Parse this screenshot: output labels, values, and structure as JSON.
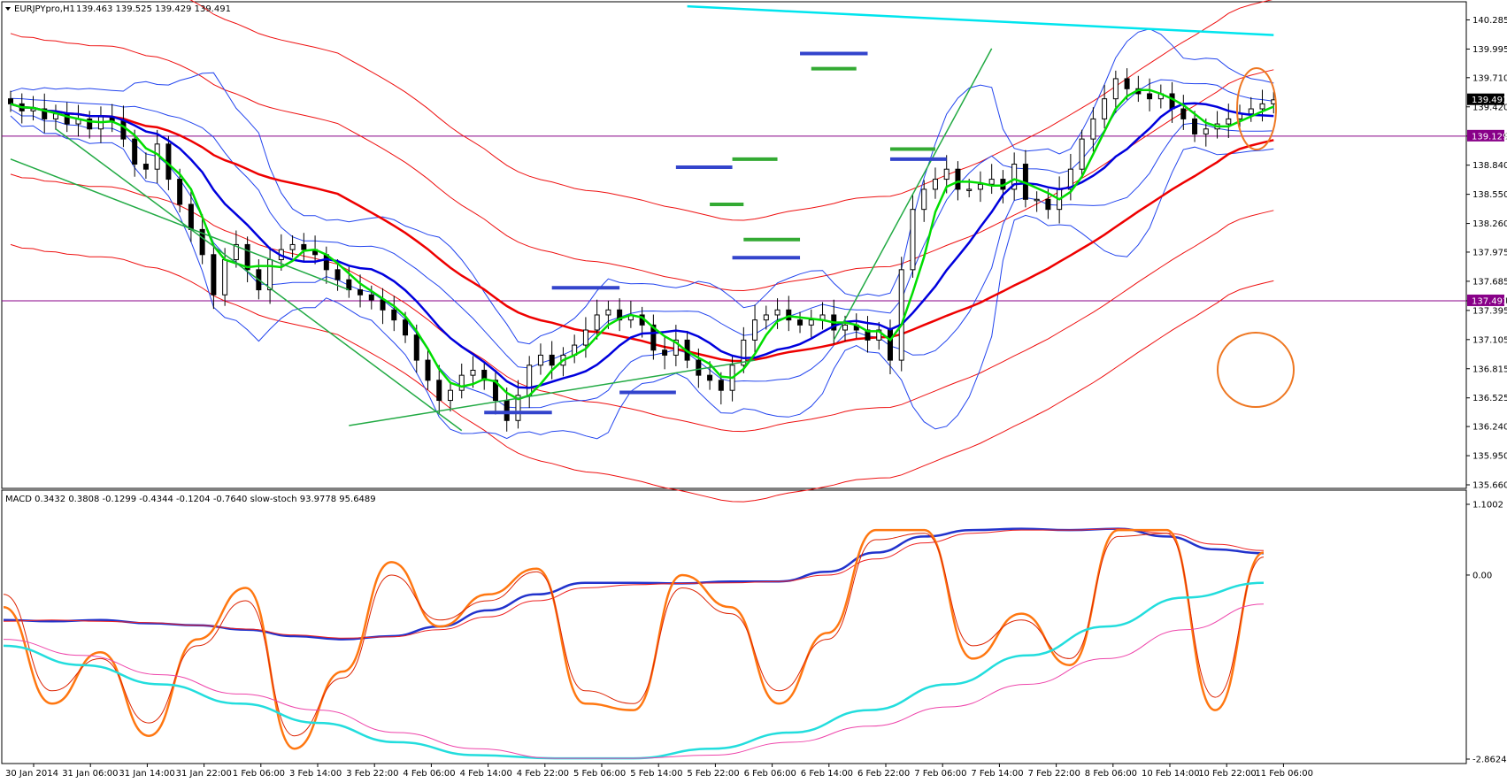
{
  "window": {
    "symbol_title": "EURJPYpro,H1",
    "ohlc": "139.463 139.525 139.429 139.491"
  },
  "colors": {
    "bull_candle": "#ffffff",
    "bear_candle": "#000000",
    "ma_fast": "#00dd00",
    "ma_mid": "#0000dd",
    "ma_slow": "#ee0000",
    "ma_long": "#00e5ee",
    "bollinger": "#2244ee",
    "envelope": "#ee1111",
    "trendline": "#22aa44",
    "level_line": "#880088",
    "price_tag_bg": "#000000",
    "level_tag_bg": "#880088",
    "support_resistance_blue": "#3344cc",
    "support_resistance_green": "#33aa33",
    "annotation": "#ee7722",
    "macd_main": "#2233cc",
    "macd_signal": "#ee2222",
    "stoch_main": "#ff7711",
    "stoch_signal": "#dd2200",
    "ma_indicator_cyan": "#22dddd",
    "ma_indicator_magenta": "#ee44aa"
  },
  "chart_data": [
    {
      "type": "candlestick",
      "symbol": "EURJPYpro",
      "timeframe": "H1",
      "ylim": [
        135.66,
        140.43
      ],
      "y_ticks": [
        "140.285",
        "139.995",
        "139.710",
        "139.420",
        "139.129",
        "138.840",
        "138.550",
        "138.260",
        "137.975",
        "137.685",
        "137.491",
        "137.395",
        "137.105",
        "136.815",
        "136.525",
        "136.240",
        "135.950",
        "135.660"
      ],
      "x_labels": [
        "30 Jan 2014",
        "31 Jan 06:00",
        "31 Jan 14:00",
        "31 Jan 22:00",
        "1 Feb 06:00",
        "3 Feb 14:00",
        "3 Feb 22:00",
        "4 Feb 06:00",
        "4 Feb 14:00",
        "4 Feb 22:00",
        "5 Feb 06:00",
        "5 Feb 14:00",
        "5 Feb 22:00",
        "6 Feb 06:00",
        "6 Feb 14:00",
        "6 Feb 22:00",
        "7 Feb 06:00",
        "7 Feb 14:00",
        "7 Feb 22:00",
        "8 Feb 06:00",
        "10 Feb 14:00",
        "10 Feb 22:00",
        "11 Feb 06:00"
      ],
      "current_price": "139.491",
      "horizontal_levels": [
        "139.129",
        "137.491"
      ],
      "closes": [
        139.45,
        139.38,
        139.4,
        139.3,
        139.35,
        139.25,
        139.3,
        139.2,
        139.32,
        139.28,
        139.1,
        138.85,
        138.8,
        139.05,
        138.7,
        138.45,
        138.2,
        137.95,
        137.55,
        137.9,
        138.05,
        137.8,
        137.6,
        137.9,
        138.0,
        138.05,
        138.0,
        137.95,
        137.8,
        137.7,
        137.6,
        137.55,
        137.5,
        137.4,
        137.3,
        137.15,
        136.9,
        136.7,
        136.5,
        136.6,
        136.75,
        136.8,
        136.7,
        136.5,
        136.3,
        136.55,
        136.85,
        136.95,
        136.85,
        136.95,
        137.05,
        137.2,
        137.35,
        137.4,
        137.3,
        137.35,
        137.25,
        137.0,
        136.95,
        137.1,
        136.9,
        136.75,
        136.7,
        136.6,
        136.85,
        137.1,
        137.3,
        137.35,
        137.4,
        137.3,
        137.25,
        137.3,
        137.35,
        137.2,
        137.25,
        137.2,
        137.1,
        137.2,
        136.9,
        137.8,
        138.4,
        138.6,
        138.7,
        138.8,
        138.6,
        138.6,
        138.65,
        138.7,
        138.6,
        138.85,
        138.5,
        138.5,
        138.4,
        138.6,
        138.8,
        139.1,
        139.3,
        139.5,
        139.7,
        139.6,
        139.55,
        139.5,
        139.55,
        139.4,
        139.3,
        139.15,
        139.2,
        139.25,
        139.3,
        139.35,
        139.4,
        139.45,
        139.49
      ]
    },
    {
      "type": "line",
      "title": "MACD 0.3432 0.3808 -0.1299 -0.4344 -0.1204 -0.7640 slow-stoch 93.9778 95.6489",
      "ylim": [
        -2.8624,
        1.1002
      ],
      "y_ticks": [
        "1.1002",
        "0.00",
        "-2.8624"
      ],
      "series": [
        {
          "name": "MACD",
          "values": [
            -0.7,
            -0.72,
            -0.7,
            -0.75,
            -0.78,
            -0.85,
            -0.95,
            -1.0,
            -0.95,
            -0.8,
            -0.55,
            -0.3,
            -0.12,
            -0.12,
            -0.13,
            -0.1,
            -0.1,
            0.05,
            0.35,
            0.6,
            0.7,
            0.72,
            0.7,
            0.72,
            0.6,
            0.4,
            0.34
          ]
        },
        {
          "name": "signal",
          "values": [
            -0.72,
            -0.7,
            -0.72,
            -0.74,
            -0.78,
            -0.84,
            -0.93,
            -0.98,
            -0.96,
            -0.85,
            -0.65,
            -0.4,
            -0.2,
            -0.15,
            -0.13,
            -0.12,
            -0.1,
            0.0,
            0.25,
            0.5,
            0.65,
            0.7,
            0.7,
            0.72,
            0.65,
            0.48,
            0.38
          ]
        },
        {
          "name": "slow-stoch",
          "values": [
            -0.5,
            -2.0,
            -1.2,
            -2.5,
            -1.0,
            -0.2,
            -2.7,
            -1.5,
            0.2,
            -0.8,
            -0.3,
            0.1,
            -2.0,
            -2.1,
            0.0,
            -0.5,
            -2.0,
            -0.9,
            0.7,
            0.7,
            -1.3,
            -0.6,
            -1.4,
            0.7,
            0.7,
            -2.1,
            0.35
          ]
        },
        {
          "name": "slow-stoch signal",
          "values": [
            -0.3,
            -1.8,
            -1.3,
            -2.3,
            -1.1,
            -0.4,
            -2.5,
            -1.6,
            0.0,
            -0.7,
            -0.4,
            0.05,
            -1.8,
            -2.0,
            -0.2,
            -0.6,
            -1.8,
            -1.0,
            0.55,
            0.65,
            -1.1,
            -0.7,
            -1.3,
            0.6,
            0.65,
            -1.9,
            0.28
          ]
        },
        {
          "name": "MA long",
          "values": [
            -1.1,
            -1.4,
            -1.7,
            -2.0,
            -2.3,
            -2.6,
            -2.8,
            -2.85,
            -2.85,
            -2.7,
            -2.45,
            -2.1,
            -1.7,
            -1.25,
            -0.8,
            -0.35,
            -0.12
          ]
        },
        {
          "name": "MA slower",
          "values": [
            -1.0,
            -1.25,
            -1.55,
            -1.85,
            -2.1,
            -2.45,
            -2.7,
            -2.85,
            -2.85,
            -2.8,
            -2.6,
            -2.35,
            -2.05,
            -1.7,
            -1.3,
            -0.85,
            -0.45
          ]
        }
      ]
    }
  ]
}
